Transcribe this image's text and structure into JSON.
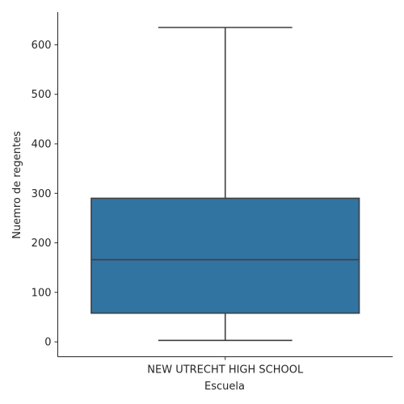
{
  "chart_data": {
    "type": "box",
    "title": "",
    "xlabel": "Escuela",
    "ylabel": "Nuemro de regentes",
    "categories": [
      "NEW UTRECHT HIGH SCHOOL"
    ],
    "boxes": [
      {
        "category": "NEW UTRECHT HIGH SCHOOL",
        "whisker_low": 3,
        "q1": 58,
        "median": 166,
        "q3": 290,
        "whisker_high": 635
      }
    ],
    "yticks": [
      0,
      100,
      200,
      300,
      400,
      500,
      600
    ],
    "ylim": [
      -30,
      666
    ],
    "grid": false,
    "box_color": "#3274a1",
    "line_color": "#3f3f3f"
  }
}
